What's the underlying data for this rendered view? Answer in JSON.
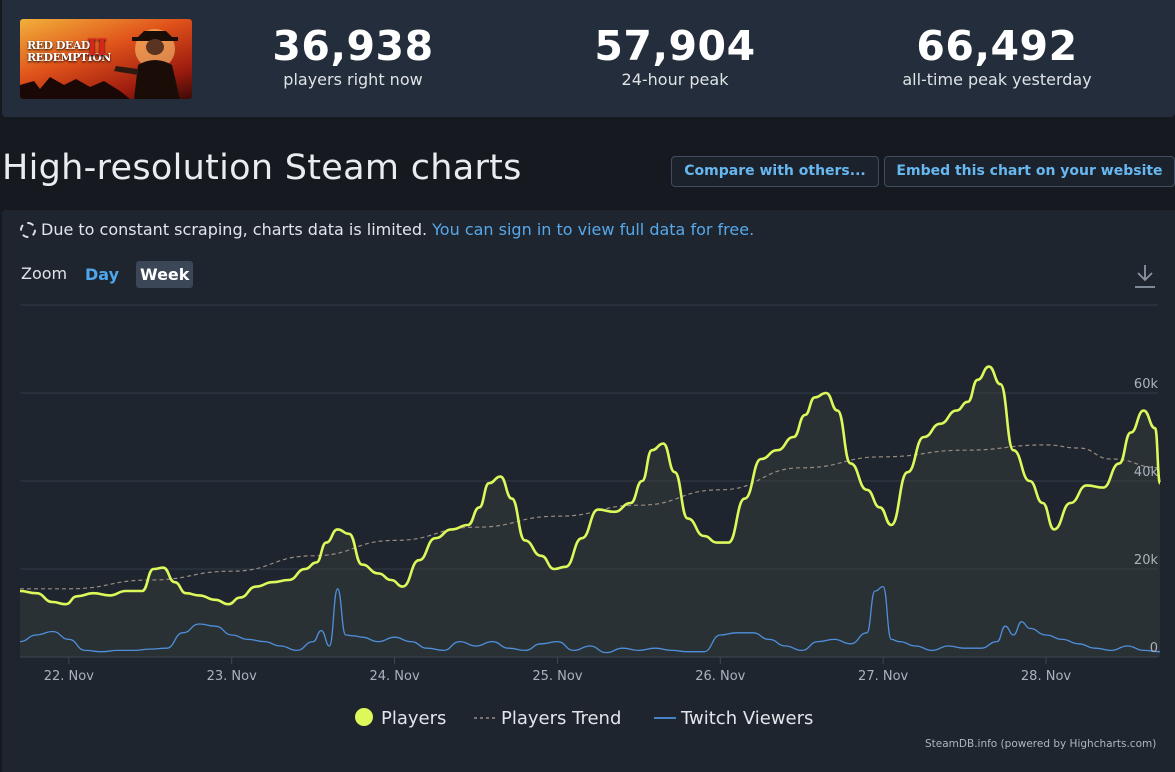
{
  "header": {
    "banner": {
      "line1": "RED DEAD",
      "line2": "REDEMPTION",
      "numeral": "II"
    },
    "stats": [
      {
        "value": "36,938",
        "label": "players right now"
      },
      {
        "value": "57,904",
        "label": "24-hour peak"
      },
      {
        "value": "66,492",
        "label": "all-time peak yesterday"
      }
    ]
  },
  "title": "High-resolution Steam charts",
  "buttons": {
    "compare": "Compare with others...",
    "embed": "Embed this chart on your website"
  },
  "notice": {
    "text": "Due to constant scraping, charts data is limited.",
    "link": "You can sign in to view full data for free."
  },
  "zoom": {
    "label": "Zoom",
    "options": [
      "Day",
      "Week"
    ],
    "selected": "Week"
  },
  "credits": "SteamDB.info (powered by Highcharts.com)",
  "colors": {
    "players": "#dcf85a",
    "trend": "#9a8b80",
    "twitch": "#4f8fdc",
    "link": "#57a8ea"
  },
  "chart_data": {
    "type": "line",
    "title": "",
    "xlabel": "",
    "ylabel": "",
    "x_ticks": [
      "22. Nov",
      "23. Nov",
      "24. Nov",
      "25. Nov",
      "26. Nov",
      "27. Nov",
      "28. Nov"
    ],
    "y_ticks": [
      "0",
      "20k",
      "40k",
      "60k"
    ],
    "xlim": [
      21.7,
      28.7
    ],
    "ylim": [
      0,
      80000
    ],
    "grid": true,
    "legend_position": "bottom-center",
    "series": [
      {
        "name": "Players",
        "x": [
          21.7,
          21.8,
          21.9,
          21.98,
          22.05,
          22.15,
          22.25,
          22.35,
          22.45,
          22.52,
          22.58,
          22.65,
          22.72,
          22.8,
          22.9,
          22.98,
          23.05,
          23.15,
          23.25,
          23.35,
          23.45,
          23.52,
          23.58,
          23.65,
          23.72,
          23.8,
          23.9,
          23.98,
          24.05,
          24.15,
          24.25,
          24.35,
          24.45,
          24.52,
          24.58,
          24.65,
          24.72,
          24.8,
          24.9,
          24.98,
          25.05,
          25.15,
          25.25,
          25.35,
          25.45,
          25.52,
          25.58,
          25.65,
          25.72,
          25.8,
          25.9,
          25.98,
          26.05,
          26.15,
          26.25,
          26.35,
          26.45,
          26.52,
          26.58,
          26.65,
          26.72,
          26.8,
          26.9,
          26.98,
          27.05,
          27.15,
          27.25,
          27.35,
          27.45,
          27.52,
          27.58,
          27.65,
          27.72,
          27.8,
          27.9,
          27.98,
          28.05,
          28.15,
          28.25,
          28.35,
          28.45,
          28.52,
          28.6,
          28.67,
          28.7
        ],
        "values": [
          15000,
          14500,
          12500,
          12000,
          13800,
          14500,
          14000,
          15000,
          15000,
          20000,
          20300,
          17000,
          14500,
          14000,
          13000,
          12000,
          13500,
          16000,
          17000,
          17500,
          20000,
          21500,
          26000,
          29000,
          28000,
          21000,
          19000,
          17500,
          16000,
          22000,
          27000,
          29000,
          30000,
          34000,
          39500,
          41000,
          36000,
          26500,
          23000,
          20000,
          20500,
          27000,
          33500,
          33000,
          35000,
          40000,
          47000,
          48500,
          42000,
          31500,
          27500,
          26000,
          26000,
          36000,
          45000,
          47000,
          50000,
          55000,
          59000,
          60000,
          56000,
          44000,
          38000,
          34000,
          30000,
          42000,
          50000,
          53000,
          56000,
          58000,
          63000,
          66000,
          62000,
          47000,
          40000,
          35000,
          29000,
          35000,
          39000,
          38500,
          44000,
          51000,
          56000,
          52000,
          39500
        ]
      },
      {
        "name": "Players Trend",
        "x": [
          21.7,
          22.0,
          22.5,
          23.0,
          23.5,
          24.0,
          24.5,
          25.0,
          25.5,
          26.0,
          26.5,
          27.0,
          27.5,
          28.0,
          28.2,
          28.4,
          28.7
        ],
        "values": [
          15500,
          15500,
          17500,
          19500,
          23000,
          26500,
          29500,
          32000,
          34500,
          38000,
          43000,
          45500,
          47000,
          48200,
          47500,
          45000,
          43000
        ]
      },
      {
        "name": "Twitch Viewers",
        "x": [
          21.7,
          21.8,
          21.9,
          22.0,
          22.1,
          22.2,
          22.3,
          22.4,
          22.5,
          22.6,
          22.7,
          22.8,
          22.9,
          23.0,
          23.1,
          23.2,
          23.3,
          23.4,
          23.5,
          23.55,
          23.6,
          23.65,
          23.7,
          23.75,
          23.8,
          23.9,
          24.0,
          24.1,
          24.2,
          24.3,
          24.4,
          24.5,
          24.6,
          24.7,
          24.8,
          24.9,
          25.0,
          25.1,
          25.2,
          25.3,
          25.4,
          25.5,
          25.6,
          25.7,
          25.8,
          25.9,
          26.0,
          26.1,
          26.2,
          26.3,
          26.4,
          26.5,
          26.6,
          26.7,
          26.8,
          26.9,
          26.95,
          27.0,
          27.05,
          27.1,
          27.2,
          27.3,
          27.4,
          27.5,
          27.6,
          27.7,
          27.75,
          27.8,
          27.85,
          27.9,
          28.0,
          28.1,
          28.2,
          28.3,
          28.4,
          28.5,
          28.6,
          28.7
        ],
        "values": [
          3500,
          5000,
          5800,
          4000,
          1500,
          1200,
          1500,
          1500,
          1800,
          2000,
          5500,
          7500,
          7000,
          5000,
          4000,
          3500,
          2500,
          1500,
          3500,
          6000,
          2500,
          15500,
          5000,
          4800,
          4500,
          3500,
          4500,
          3500,
          2000,
          1500,
          3500,
          2500,
          3500,
          2000,
          1500,
          3000,
          3500,
          1500,
          2500,
          1000,
          2000,
          1500,
          2000,
          1500,
          1200,
          1200,
          5000,
          5500,
          5500,
          4000,
          2500,
          1500,
          3500,
          4000,
          3000,
          5500,
          15000,
          16000,
          4000,
          3500,
          2500,
          1500,
          2500,
          2000,
          2000,
          3500,
          7000,
          5000,
          8000,
          6500,
          5000,
          4000,
          3000,
          2000,
          1500,
          2500,
          1500,
          1200
        ]
      }
    ]
  }
}
